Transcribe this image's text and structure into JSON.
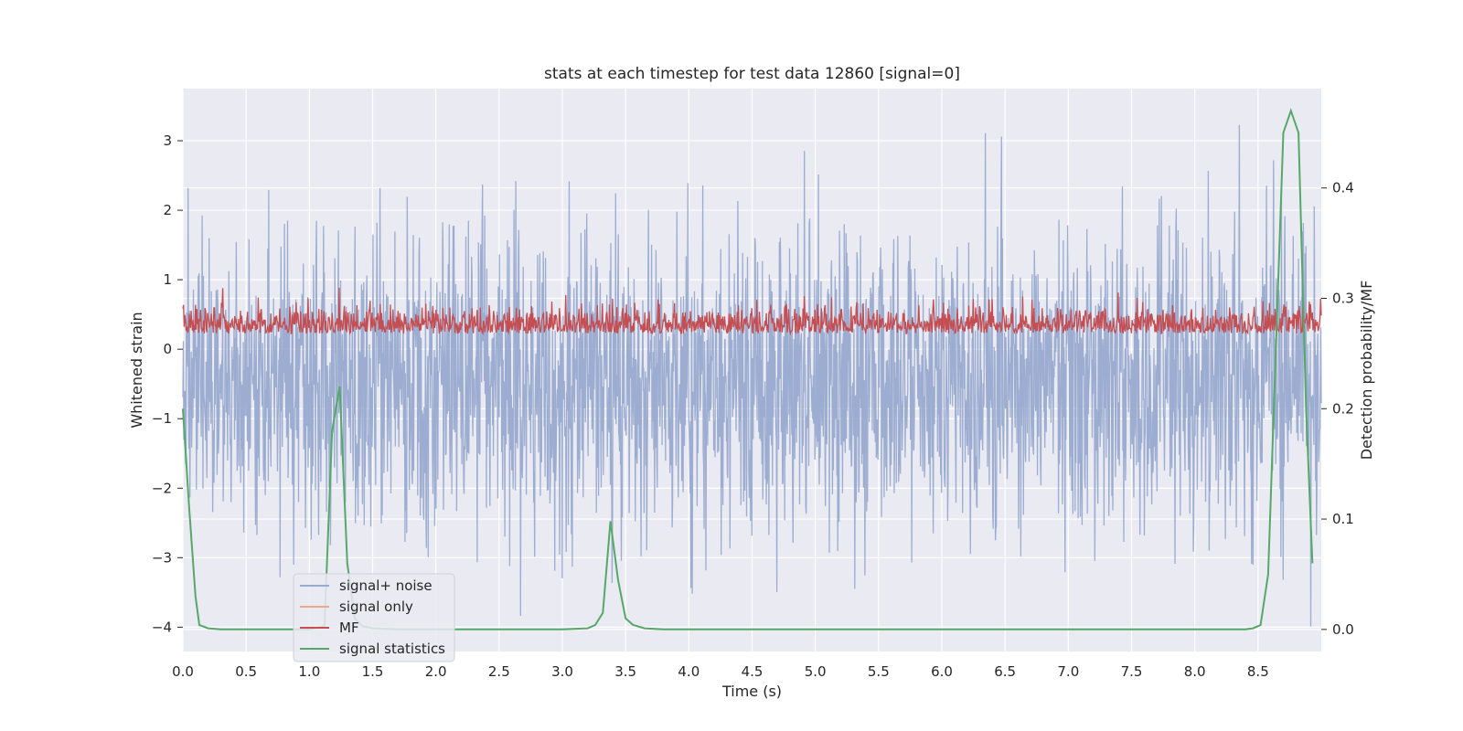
{
  "chart_data": {
    "type": "line",
    "title": "stats at each timestep for test data 12860 [signal=0]",
    "xlabel": "Time (s)",
    "ylabel": "Whitened strain",
    "ylabel_right": "Detection probability/MF",
    "xlim": [
      0,
      9.0
    ],
    "ylim": [
      -4.35,
      3.75
    ],
    "ylim_right": [
      -0.02,
      0.49
    ],
    "x_ticks": [
      "0.0",
      "0.5",
      "1.0",
      "1.5",
      "2.0",
      "2.5",
      "3.0",
      "3.5",
      "4.0",
      "4.5",
      "5.0",
      "5.5",
      "6.0",
      "6.5",
      "7.0",
      "7.5",
      "8.0",
      "8.5"
    ],
    "y_ticks": [
      "3",
      "2",
      "1",
      "0",
      "−1",
      "−2",
      "−3",
      "−4"
    ],
    "y_ticks_right": [
      "0.0",
      "0.1",
      "0.2",
      "0.3",
      "0.4"
    ],
    "grid": true,
    "legend_position": "lower-left",
    "colors": {
      "signal_noise": "#98aacf",
      "signal_only": "#e9a98a",
      "mf": "#c44e52",
      "signal_statistics": "#55a868",
      "axes_bg": "#eaeaf2",
      "grid": "#ffffff"
    },
    "series": [
      {
        "name": "signal+ noise",
        "axis": "left",
        "description_values": "dense noise, roughly mean -0.5, peaks near 3.3, troughs near -4.0"
      },
      {
        "name": "signal only",
        "axis": "left",
        "values": []
      },
      {
        "name": "MF",
        "axis": "right",
        "range": [
          0.255,
          0.315
        ]
      },
      {
        "name": "signal statistics",
        "axis": "right",
        "x": [
          0.0,
          0.05,
          0.1,
          0.13,
          0.2,
          0.3,
          0.5,
          1.0,
          1.12,
          1.18,
          1.24,
          1.3,
          1.36,
          1.42,
          1.5,
          1.7,
          2.0,
          3.0,
          3.2,
          3.26,
          3.32,
          3.38,
          3.44,
          3.5,
          3.56,
          3.65,
          3.8,
          4.0,
          5.0,
          6.0,
          7.0,
          8.0,
          8.4,
          8.46,
          8.52,
          8.58,
          8.64,
          8.7,
          8.76,
          8.82,
          8.88,
          8.93
        ],
        "values": [
          0.2,
          0.11,
          0.03,
          0.004,
          0.001,
          0.0,
          0.0,
          0.0,
          0.003,
          0.18,
          0.22,
          0.06,
          0.01,
          0.003,
          0.001,
          0.0,
          0.0,
          0.0,
          0.001,
          0.004,
          0.015,
          0.098,
          0.045,
          0.01,
          0.004,
          0.001,
          0.0,
          0.0,
          0.0,
          0.0,
          0.0,
          0.0,
          0.0,
          0.001,
          0.004,
          0.05,
          0.25,
          0.45,
          0.47,
          0.45,
          0.2,
          0.06
        ]
      }
    ]
  },
  "legend": {
    "items": [
      "signal+ noise",
      "signal only",
      "MF",
      "signal statistics"
    ]
  }
}
